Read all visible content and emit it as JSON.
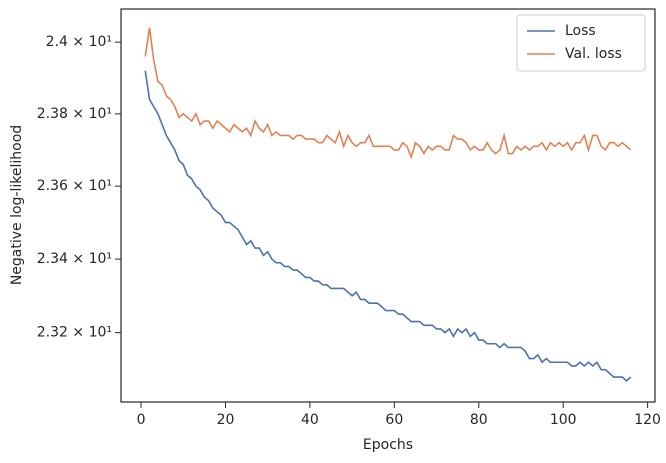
{
  "chart_data": {
    "type": "line",
    "xlabel": "Epochs",
    "ylabel": "Negative log-likelihood",
    "x": [
      1,
      2,
      3,
      4,
      5,
      6,
      7,
      8,
      9,
      10,
      11,
      12,
      13,
      14,
      15,
      16,
      17,
      18,
      19,
      20,
      21,
      22,
      23,
      24,
      25,
      26,
      27,
      28,
      29,
      30,
      31,
      32,
      33,
      34,
      35,
      36,
      37,
      38,
      39,
      40,
      41,
      42,
      43,
      44,
      45,
      46,
      47,
      48,
      49,
      50,
      51,
      52,
      53,
      54,
      55,
      56,
      57,
      58,
      59,
      60,
      61,
      62,
      63,
      64,
      65,
      66,
      67,
      68,
      69,
      70,
      71,
      72,
      73,
      74,
      75,
      76,
      77,
      78,
      79,
      80,
      81,
      82,
      83,
      84,
      85,
      86,
      87,
      88,
      89,
      90,
      91,
      92,
      93,
      94,
      95,
      96,
      97,
      98,
      99,
      100,
      101,
      102,
      103,
      104,
      105,
      106,
      107,
      108,
      109,
      110,
      111,
      112,
      113,
      114,
      115,
      116
    ],
    "series": [
      {
        "name": "Loss",
        "color": "#4c72b0",
        "values": [
          23.92,
          23.84,
          23.82,
          23.8,
          23.77,
          23.74,
          23.72,
          23.7,
          23.67,
          23.66,
          23.63,
          23.62,
          23.6,
          23.59,
          23.57,
          23.56,
          23.54,
          23.53,
          23.52,
          23.5,
          23.5,
          23.49,
          23.48,
          23.46,
          23.44,
          23.45,
          23.43,
          23.43,
          23.41,
          23.42,
          23.4,
          23.39,
          23.39,
          23.38,
          23.38,
          23.37,
          23.37,
          23.36,
          23.35,
          23.35,
          23.34,
          23.34,
          23.33,
          23.33,
          23.32,
          23.32,
          23.32,
          23.32,
          23.31,
          23.3,
          23.31,
          23.29,
          23.29,
          23.28,
          23.28,
          23.28,
          23.27,
          23.26,
          23.26,
          23.26,
          23.25,
          23.25,
          23.24,
          23.23,
          23.23,
          23.23,
          23.22,
          23.22,
          23.22,
          23.21,
          23.21,
          23.2,
          23.21,
          23.19,
          23.21,
          23.2,
          23.21,
          23.19,
          23.2,
          23.18,
          23.18,
          23.17,
          23.17,
          23.17,
          23.16,
          23.17,
          23.16,
          23.16,
          23.16,
          23.16,
          23.15,
          23.13,
          23.13,
          23.14,
          23.12,
          23.13,
          23.12,
          23.12,
          23.12,
          23.12,
          23.12,
          23.11,
          23.11,
          23.12,
          23.11,
          23.12,
          23.11,
          23.12,
          23.1,
          23.1,
          23.09,
          23.08,
          23.08,
          23.08,
          23.07,
          23.08
        ]
      },
      {
        "name": "Val. loss",
        "color": "#dd8452",
        "values": [
          23.96,
          24.04,
          23.95,
          23.89,
          23.88,
          23.85,
          23.84,
          23.82,
          23.79,
          23.8,
          23.79,
          23.78,
          23.8,
          23.77,
          23.78,
          23.78,
          23.76,
          23.78,
          23.77,
          23.76,
          23.75,
          23.77,
          23.76,
          23.75,
          23.76,
          23.74,
          23.78,
          23.76,
          23.75,
          23.77,
          23.74,
          23.75,
          23.74,
          23.74,
          23.74,
          23.73,
          23.74,
          23.74,
          23.73,
          23.73,
          23.73,
          23.72,
          23.72,
          23.74,
          23.73,
          23.72,
          23.75,
          23.71,
          23.74,
          23.72,
          23.71,
          23.72,
          23.72,
          23.74,
          23.71,
          23.71,
          23.71,
          23.71,
          23.71,
          23.7,
          23.7,
          23.72,
          23.71,
          23.68,
          23.72,
          23.71,
          23.69,
          23.71,
          23.7,
          23.71,
          23.71,
          23.7,
          23.7,
          23.74,
          23.73,
          23.73,
          23.72,
          23.7,
          23.71,
          23.7,
          23.7,
          23.72,
          23.7,
          23.69,
          23.7,
          23.74,
          23.69,
          23.69,
          23.71,
          23.7,
          23.71,
          23.7,
          23.71,
          23.71,
          23.72,
          23.7,
          23.72,
          23.71,
          23.72,
          23.71,
          23.72,
          23.7,
          23.72,
          23.72,
          23.74,
          23.7,
          23.74,
          23.74,
          23.71,
          23.7,
          23.72,
          23.72,
          23.71,
          23.72,
          23.71,
          23.7
        ]
      }
    ],
    "xlim": [
      -4.75,
      121.75
    ],
    "xticks": [
      0,
      20,
      40,
      60,
      80,
      100,
      120
    ],
    "ylim": [
      23.013,
      24.093
    ],
    "yscale": "log",
    "yticks": [
      {
        "value": 23.2,
        "label": "2.32 × 10¹"
      },
      {
        "value": 23.4,
        "label": "2.34 × 10¹"
      },
      {
        "value": 23.6,
        "label": "2.36 × 10¹"
      },
      {
        "value": 23.8,
        "label": "2.38 × 10¹"
      },
      {
        "value": 24,
        "label": "2.4 × 10¹"
      }
    ],
    "legend": "upper right"
  }
}
